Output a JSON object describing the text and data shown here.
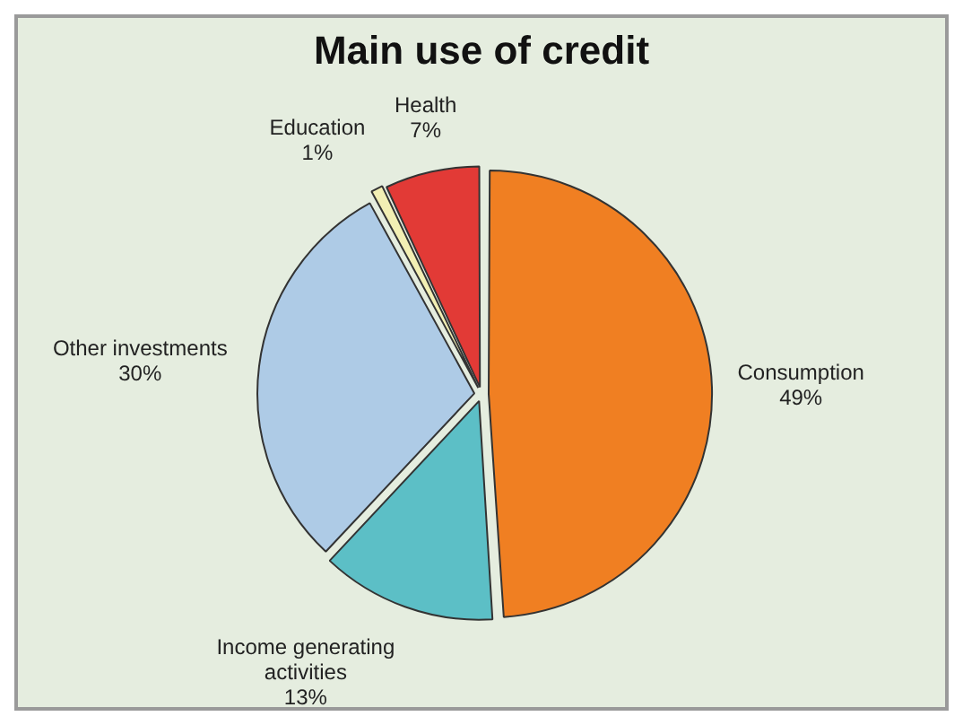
{
  "chart_data": {
    "type": "pie",
    "title": "Main use of credit",
    "categories": [
      "Consumption",
      "Income generating activities",
      "Other investments",
      "Education",
      "Health"
    ],
    "values": [
      49,
      13,
      30,
      1,
      7
    ],
    "value_labels": [
      "49%",
      "13%",
      "30%",
      "1%",
      "7%"
    ],
    "colors": [
      "#f07f22",
      "#5cbfc6",
      "#aecbe6",
      "#f2efb4",
      "#e23a36"
    ],
    "legend": false
  }
}
